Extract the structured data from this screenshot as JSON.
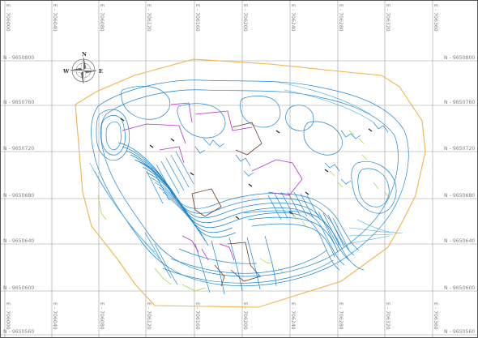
{
  "map": {
    "colors": {
      "grid": "#9a9a9a",
      "grid_label": "#808080",
      "boundary": "#f0b44a",
      "contour_blue": "#1f86cf",
      "contour_cyan": "#35a6e6",
      "contour_green": "#9bd64e",
      "magenta": "#b430c8",
      "brown": "#6e3b2a",
      "black": "#222222"
    },
    "north_arrow": {
      "label_n": "N",
      "label_w": "W",
      "label_e": "E"
    },
    "eastings": [
      "E - 706000",
      "E - 706040",
      "E - 706080",
      "E - 706120",
      "E - 706160",
      "E - 706200",
      "E - 706240",
      "E - 706280",
      "E - 706320",
      "E - 706360"
    ],
    "northings": [
      "N - 9650800",
      "N - 9650760",
      "N - 9650720",
      "N - 9650680",
      "N - 9650640",
      "N - 9650600",
      "N - 9650560"
    ]
  }
}
